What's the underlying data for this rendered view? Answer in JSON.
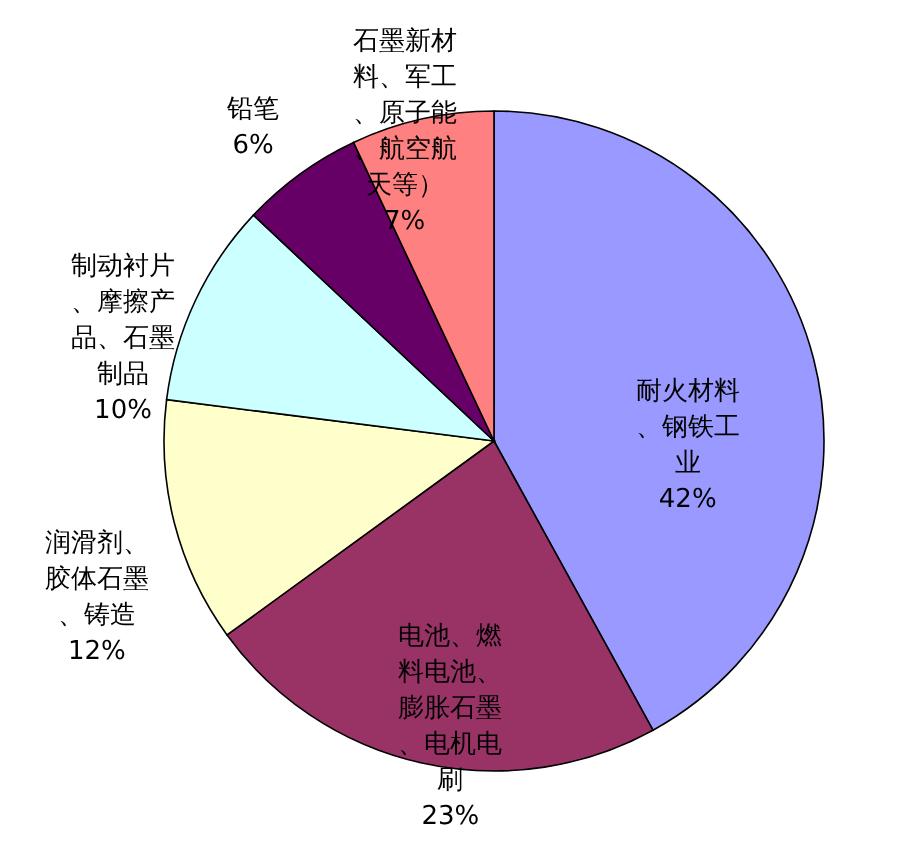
{
  "chart_data": {
    "type": "pie",
    "categories": [
      "耐火材料、钢铁工业",
      "电池、燃料电池、膨胀石墨、电机电刷",
      "润滑剂、胶体石墨、铸造",
      "制动衬片、摩擦产品、石墨制品",
      "铅笔",
      "石墨新材料、军工、原子能、航空航天等）"
    ],
    "values": [
      42,
      23,
      12,
      10,
      6,
      7
    ],
    "value_labels": [
      "42%",
      "23%",
      "12%",
      "10%",
      "6%",
      "7%"
    ],
    "colors": [
      "#9999ff",
      "#993366",
      "#ffffcc",
      "#ccffff",
      "#660066",
      "#ff8080"
    ]
  }
}
